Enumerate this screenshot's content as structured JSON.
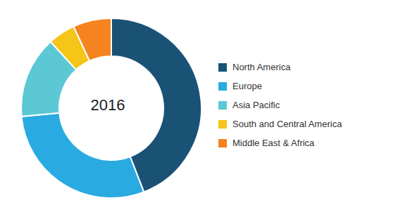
{
  "chart_data": {
    "type": "pie",
    "categories": [
      "North America",
      "Europe",
      "Asia Pacific",
      "South and Central America",
      "Middle East & Africa"
    ],
    "values": [
      45,
      30,
      15,
      5,
      7
    ],
    "colors": [
      "#1a5276",
      "#29abe2",
      "#5bc8d4",
      "#f5c518",
      "#f5831f"
    ],
    "annotations": [
      "2016"
    ],
    "legend": "right"
  }
}
